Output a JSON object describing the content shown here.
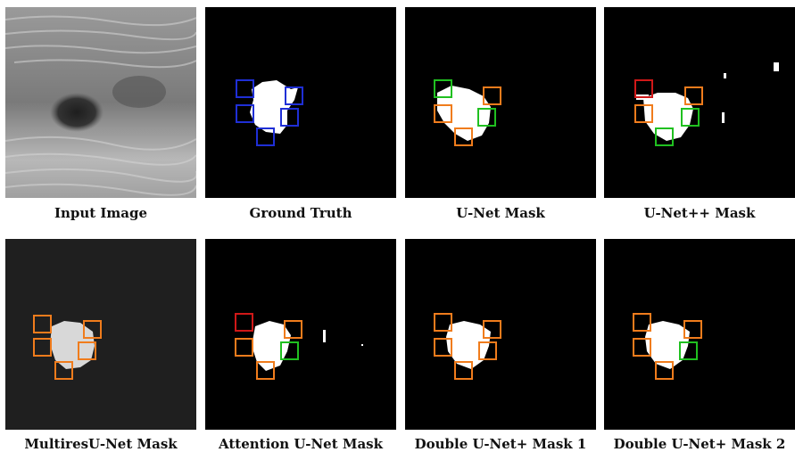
{
  "captions": {
    "input": "Input Image",
    "ground_truth": "Ground Truth",
    "unet": "U-Net Mask",
    "unetpp": "U-Net++ Mask",
    "multires": "MultiresU-Net Mask",
    "attention": "Attention U-Net Mask",
    "double1": "Double U-Net+ Mask 1",
    "double2": "Double U-Net+ Mask 2"
  },
  "box_colors": {
    "ground_truth": "#1f2fd6",
    "correct": "#f07c1c",
    "improved": "#20c020",
    "error": "#d01818"
  }
}
